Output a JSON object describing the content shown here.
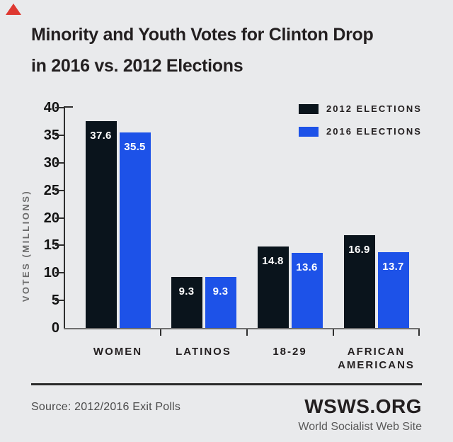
{
  "decoration": {
    "corner_triangle_color": "#de3831"
  },
  "title": {
    "line1": "Minority and Youth Votes for Clinton Drop",
    "line2": "in 2016 vs. 2012 Elections"
  },
  "chart_data": {
    "type": "bar",
    "title": "Minority and Youth Votes for Clinton Drop in 2016 vs. 2012 Elections",
    "categories": [
      "WOMEN",
      "LATINOS",
      "18-29",
      "AFRICAN AMERICANS"
    ],
    "series": [
      {
        "name": "2012 ELECTIONS",
        "color": "#0a141c",
        "values": [
          37.6,
          9.3,
          14.8,
          16.9
        ]
      },
      {
        "name": "2016 ELECTIONS",
        "color": "#1d52e8",
        "values": [
          35.5,
          9.3,
          13.6,
          13.7
        ]
      }
    ],
    "ylabel": "VOTES (MILLIONS)",
    "ylim": [
      0,
      40
    ],
    "yticks": [
      0,
      5,
      10,
      15,
      20,
      25,
      30,
      35,
      40
    ],
    "value_labels": true,
    "legend_position": "top-right",
    "grid": false,
    "bar_value_text_color": "#ffffff"
  },
  "footer": {
    "source": "Source: 2012/2016 Exit Polls",
    "brand": "WSWS.ORG",
    "tagline": "World Socialist Web Site"
  }
}
